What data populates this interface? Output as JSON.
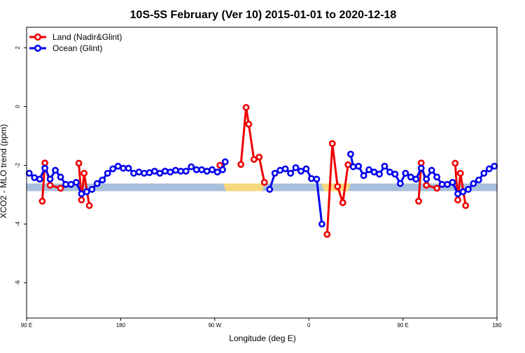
{
  "chart_data": {
    "type": "line",
    "title": "10S-5S February (Ver 10)   2015-01-01 to 2020-12-18",
    "xlabel": "Longitude (deg E)",
    "ylabel": "XCO2 - MLO trend (ppm)",
    "xlim": [
      90,
      540
    ],
    "ylim": [
      -7.2,
      2.7
    ],
    "x_ticks": [
      {
        "value": 90,
        "label": "90 E"
      },
      {
        "value": 180,
        "label": "180"
      },
      {
        "value": 270,
        "label": "90 W"
      },
      {
        "value": 360,
        "label": "0"
      },
      {
        "value": 450,
        "label": "90 E"
      },
      {
        "value": 540,
        "label": "180"
      }
    ],
    "y_ticks": [
      {
        "value": 2,
        "label": "2"
      },
      {
        "value": 0,
        "label": "0"
      },
      {
        "value": -2,
        "label": "-2"
      },
      {
        "value": -4,
        "label": "-4"
      },
      {
        "value": -6,
        "label": "-6"
      }
    ],
    "legend_position": "top-left",
    "grid": false,
    "band": {
      "y_min": -2.88,
      "y_max": -2.62,
      "ocean_color": "#a8bfdc",
      "land_color": "#f7d87c",
      "land_segments": [
        [
          278,
          318
        ],
        [
          372,
          400
        ]
      ]
    },
    "series": [
      {
        "name": "Land (Nadir&Glint)",
        "color": "#ee0000",
        "segments": [
          [
            [
              105,
              -3.22
            ],
            [
              107.5,
              -1.92
            ],
            [
              112.5,
              -2.68
            ],
            [
              122.5,
              -2.78
            ]
          ],
          [
            [
              140,
              -1.93
            ],
            [
              142.5,
              -3.18
            ],
            [
              145,
              -2.27
            ],
            [
              150,
              -3.37
            ]
          ],
          [
            [
              275,
              -2.0
            ]
          ],
          [
            [
              295,
              -1.97
            ],
            [
              300,
              -0.03
            ],
            [
              302.5,
              -0.6
            ],
            [
              307.5,
              -1.8
            ],
            [
              312.5,
              -1.72
            ],
            [
              317.5,
              -2.58
            ]
          ],
          [
            [
              377.5,
              -4.35
            ],
            [
              382.5,
              -1.26
            ],
            [
              387.5,
              -2.72
            ],
            [
              392.5,
              -3.27
            ],
            [
              397.5,
              -1.98
            ]
          ],
          [
            [
              465,
              -3.22
            ],
            [
              467.5,
              -1.92
            ],
            [
              472.5,
              -2.68
            ],
            [
              482.5,
              -2.78
            ]
          ],
          [
            [
              500,
              -1.93
            ],
            [
              502.5,
              -3.18
            ],
            [
              505,
              -2.27
            ],
            [
              510,
              -3.37
            ]
          ]
        ]
      },
      {
        "name": "Ocean (Glint)",
        "color": "#0000ee",
        "segments": [
          [
            [
              92.5,
              -2.27
            ],
            [
              97.5,
              -2.42
            ],
            [
              102.5,
              -2.47
            ],
            [
              107.5,
              -2.1
            ],
            [
              112.5,
              -2.47
            ],
            [
              117.5,
              -2.17
            ],
            [
              122.5,
              -2.4
            ],
            [
              127.5,
              -2.65
            ],
            [
              132.5,
              -2.65
            ],
            [
              137.5,
              -2.58
            ],
            [
              142.5,
              -2.97
            ],
            [
              147.5,
              -2.9
            ],
            [
              152.5,
              -2.82
            ],
            [
              157.5,
              -2.62
            ],
            [
              162.5,
              -2.5
            ],
            [
              167.5,
              -2.27
            ],
            [
              172.5,
              -2.12
            ],
            [
              177.5,
              -2.03
            ],
            [
              182.5,
              -2.1
            ],
            [
              187.5,
              -2.1
            ],
            [
              192.5,
              -2.27
            ],
            [
              197.5,
              -2.23
            ],
            [
              202.5,
              -2.27
            ],
            [
              207.5,
              -2.25
            ],
            [
              212.5,
              -2.2
            ],
            [
              217.5,
              -2.27
            ],
            [
              222.5,
              -2.2
            ],
            [
              227.5,
              -2.23
            ],
            [
              232.5,
              -2.17
            ],
            [
              237.5,
              -2.2
            ],
            [
              242.5,
              -2.2
            ],
            [
              247.5,
              -2.05
            ],
            [
              252.5,
              -2.15
            ],
            [
              257.5,
              -2.15
            ],
            [
              262.5,
              -2.2
            ],
            [
              267.5,
              -2.15
            ],
            [
              272.5,
              -2.23
            ],
            [
              277.5,
              -2.15
            ],
            [
              280,
              -1.88
            ]
          ],
          [
            [
              322.5,
              -2.82
            ],
            [
              327.5,
              -2.27
            ],
            [
              332.5,
              -2.17
            ],
            [
              337.5,
              -2.12
            ],
            [
              342.5,
              -2.27
            ],
            [
              347.5,
              -2.08
            ],
            [
              352.5,
              -2.2
            ],
            [
              357.5,
              -2.12
            ],
            [
              362.5,
              -2.45
            ],
            [
              367.5,
              -2.47
            ],
            [
              372.5,
              -4.0
            ]
          ],
          [
            [
              400,
              -1.62
            ],
            [
              402.5,
              -2.05
            ],
            [
              407.5,
              -2.03
            ],
            [
              412.5,
              -2.35
            ],
            [
              417.5,
              -2.15
            ],
            [
              422.5,
              -2.23
            ],
            [
              427.5,
              -2.3
            ],
            [
              432.5,
              -2.03
            ],
            [
              437.5,
              -2.23
            ],
            [
              442.5,
              -2.3
            ],
            [
              447.5,
              -2.62
            ],
            [
              452.5,
              -2.27
            ],
            [
              457.5,
              -2.4
            ],
            [
              462.5,
              -2.47
            ],
            [
              467.5,
              -2.1
            ],
            [
              472.5,
              -2.47
            ],
            [
              477.5,
              -2.17
            ],
            [
              482.5,
              -2.4
            ],
            [
              487.5,
              -2.65
            ],
            [
              492.5,
              -2.65
            ],
            [
              497.5,
              -2.58
            ],
            [
              502.5,
              -2.97
            ],
            [
              507.5,
              -2.9
            ],
            [
              512.5,
              -2.82
            ],
            [
              517.5,
              -2.62
            ],
            [
              522.5,
              -2.5
            ],
            [
              527.5,
              -2.27
            ],
            [
              532.5,
              -2.12
            ],
            [
              537.5,
              -2.03
            ]
          ]
        ]
      }
    ]
  }
}
